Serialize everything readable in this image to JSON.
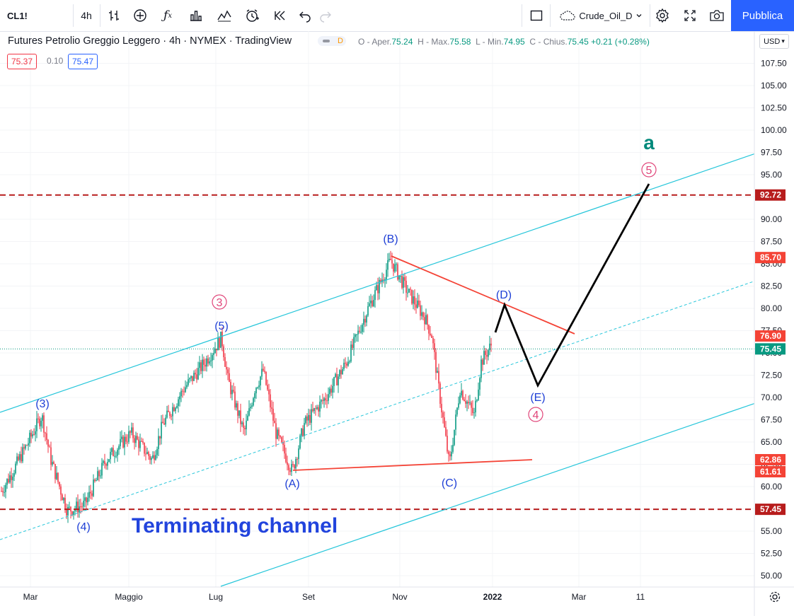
{
  "toolbar": {
    "symbol": "CL1!",
    "interval": "4h",
    "layout_name": "Crude_Oil_D",
    "publish_label": "Pubblica"
  },
  "legend": {
    "title": "Futures Petrolio Greggio Leggero · 4h · NYMEX · TradingView",
    "badge": "D",
    "open_label": "O - Aper.",
    "open": "75.24",
    "high_label": "H - Max.",
    "high": "75.58",
    "low_label": "L - Min.",
    "low": "74.95",
    "close_label": "C - Chius.",
    "close": "75.45",
    "change": "+0.21 (+0.28%)",
    "bid": "75.37",
    "spread": "0.10",
    "ask": "75.47"
  },
  "currency": "USD",
  "colors": {
    "accent": "#2962ff",
    "up": "#089981",
    "down": "#f23645",
    "channel": "#26c6da",
    "wave_blue": "#1e3fd6",
    "wave_pink": "#e0467a",
    "wave_green": "#00897b",
    "level_line": "#b71c1c"
  },
  "icons": [
    "bar-style-icon",
    "add-indicator-icon",
    "fx-icon",
    "templates-icon",
    "indicators-icon",
    "alert-icon",
    "replay-icon",
    "undo-icon",
    "redo-icon",
    "cloud-icon",
    "gear-icon",
    "fullscreen-icon",
    "camera-icon"
  ],
  "chart_data": {
    "type": "candlestick",
    "symbol": "CL1!",
    "price_axis": [
      "107.50",
      "105.00",
      "102.50",
      "100.00",
      "97.50",
      "95.00",
      "92.50",
      "90.00",
      "87.50",
      "85.00",
      "82.50",
      "80.00",
      "77.50",
      "75.00",
      "72.50",
      "70.00",
      "67.50",
      "65.00",
      "62.50",
      "60.00",
      "57.50",
      "55.00",
      "52.50",
      "50.00"
    ],
    "time_axis": [
      "Mar",
      "Maggio",
      "Lug",
      "Set",
      "Nov",
      "2022",
      "Mar",
      "11"
    ],
    "ylim": [
      49,
      109
    ],
    "key_price_points": [
      {
        "label": "(3)",
        "price": 68.0
      },
      {
        "label": "(4)",
        "price": 57.3
      },
      {
        "label": "(5)",
        "price": 76.7
      },
      {
        "label": "(A)",
        "price": 61.7
      },
      {
        "label": "(B)",
        "price": 85.4
      },
      {
        "label": "(C)",
        "price": 62.4
      },
      {
        "label": "(D)",
        "price": 80.0
      },
      {
        "label": "(E)",
        "price": 71.3
      },
      {
        "label": "5",
        "price": 94.0
      }
    ],
    "price_labels": [
      {
        "value": "92.72",
        "kind": "level"
      },
      {
        "value": "85.70",
        "kind": "line"
      },
      {
        "value": "76.90",
        "kind": "line"
      },
      {
        "value": "75.45",
        "kind": "last"
      },
      {
        "value": "62.86",
        "kind": "line"
      },
      {
        "value": "61.61",
        "kind": "line"
      },
      {
        "value": "57.45",
        "kind": "level"
      }
    ],
    "horizontal_levels": [
      92.72,
      57.45
    ],
    "wave_labels": [
      {
        "text": "(3)",
        "color": "blue"
      },
      {
        "text": "(4)",
        "color": "blue"
      },
      {
        "text": "(5)",
        "color": "blue"
      },
      {
        "text": "3",
        "color": "pink",
        "circled": true
      },
      {
        "text": "(A)",
        "color": "blue"
      },
      {
        "text": "(B)",
        "color": "blue"
      },
      {
        "text": "(C)",
        "color": "blue"
      },
      {
        "text": "(D)",
        "color": "blue"
      },
      {
        "text": "(E)",
        "color": "blue"
      },
      {
        "text": "4",
        "color": "pink",
        "circled": true
      },
      {
        "text": "5",
        "color": "pink",
        "circled": true
      },
      {
        "text": "a",
        "color": "green"
      }
    ],
    "annotation": "Terminating channel"
  }
}
